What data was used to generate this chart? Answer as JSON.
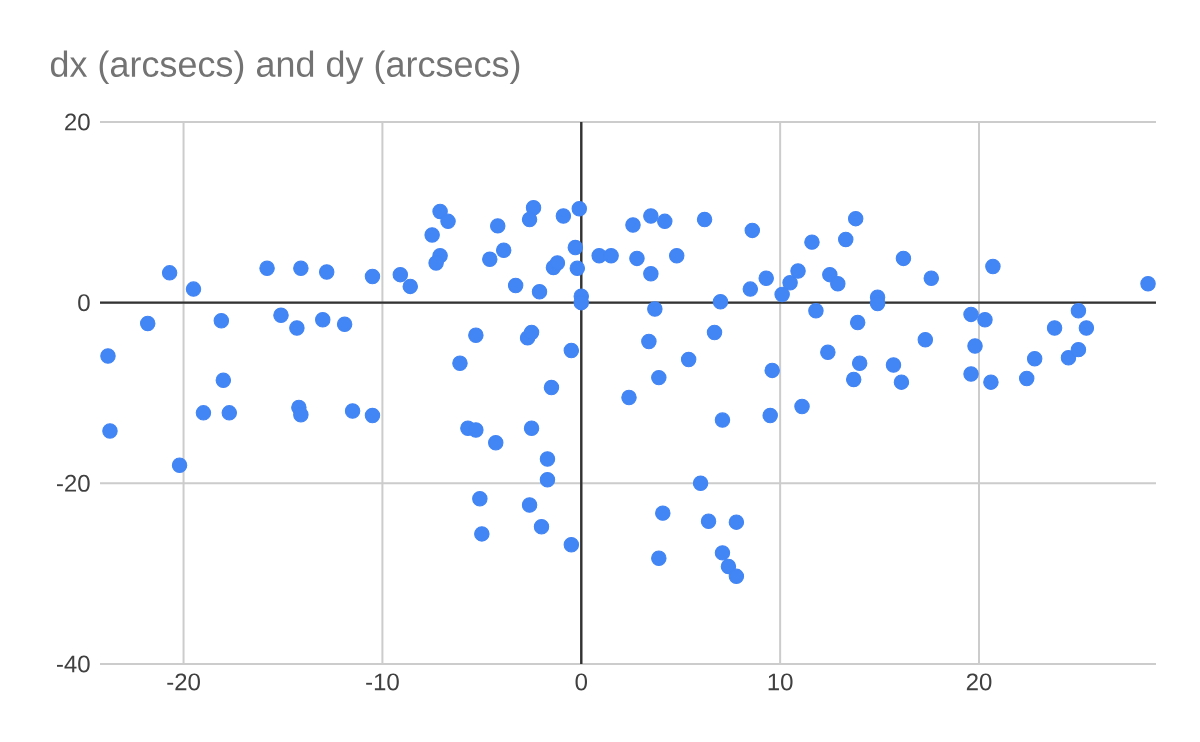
{
  "chart_data": {
    "type": "scatter",
    "title": "dx (arcsecs) and dy (arcsecs)",
    "x": [
      -7.1,
      -6.7,
      -7.5,
      -4.2,
      -2.4,
      -2.6,
      -0.9,
      -0.1,
      -7.1,
      -7.3,
      -4.6,
      -3.9,
      -0.3,
      -1.4,
      -1.2,
      -0.2,
      -3.3,
      -2.1,
      0,
      0,
      0.9,
      1.5,
      2.6,
      3.5,
      4.2,
      6.2,
      8.6,
      2.8,
      3.5,
      4.8,
      8.5,
      9.3,
      10.1,
      3.7,
      7.0,
      -5.3,
      -2.7,
      -2.5,
      -6.1,
      -0.5,
      -1.5,
      3.4,
      6.7,
      5.4,
      3.9,
      9.6,
      -20.7,
      -19.5,
      -21.8,
      -23.8,
      -18.1,
      -18.0,
      -15.8,
      -14.1,
      -12.8,
      -15.1,
      -14.3,
      -13.0,
      -11.9,
      -10.5,
      -9.1,
      -8.6,
      10.5,
      10.9,
      11.6,
      13.3,
      13.8,
      12.5,
      12.9,
      11.8,
      13.9,
      14.9,
      14.9,
      16.2,
      17.6,
      20.7,
      28.5,
      19.6,
      20.3,
      17.3,
      19.8,
      23.8,
      25.0,
      25.4,
      12.4,
      14.0,
      15.7,
      13.7,
      16.1,
      19.6,
      20.6,
      22.4,
      22.8,
      24.5,
      25.0,
      9.5,
      11.1,
      -23.7,
      -20.2,
      -19.0,
      -17.7,
      -14.2,
      -14.1,
      -11.5,
      -10.5,
      -5.7,
      -5.3,
      -4.3,
      -2.5,
      -1.7,
      -1.7,
      -5.1,
      -2.6,
      -5.0,
      -2.0,
      -0.5,
      2.4,
      7.1,
      6.0,
      4.1,
      6.4,
      7.8,
      3.9,
      7.1,
      7.4,
      7.8
    ],
    "values": [
      10.1,
      9.0,
      7.5,
      8.5,
      10.5,
      9.2,
      9.6,
      10.4,
      5.2,
      4.4,
      4.8,
      5.8,
      6.1,
      3.9,
      4.4,
      3.8,
      1.9,
      1.2,
      0.7,
      0,
      5.2,
      5.2,
      8.6,
      9.6,
      9.0,
      9.2,
      8.0,
      4.9,
      3.2,
      5.2,
      1.5,
      2.7,
      0.9,
      -0.7,
      0.1,
      -3.6,
      -3.9,
      -3.3,
      -6.7,
      -5.3,
      -9.4,
      -4.3,
      -3.3,
      -6.3,
      -8.3,
      -7.5,
      3.3,
      1.5,
      -2.3,
      -5.9,
      -2.0,
      -8.6,
      3.8,
      3.8,
      3.4,
      -1.4,
      -2.8,
      -1.9,
      -2.4,
      2.9,
      3.1,
      1.8,
      2.2,
      3.5,
      6.7,
      7.0,
      9.3,
      3.1,
      2.1,
      -0.9,
      -2.2,
      0.6,
      -0.1,
      4.9,
      2.7,
      4.0,
      2.1,
      -1.3,
      -1.9,
      -4.1,
      -4.8,
      -2.8,
      -0.9,
      -2.8,
      -5.5,
      -6.7,
      -6.9,
      -8.5,
      -8.8,
      -7.9,
      -8.8,
      -8.4,
      -6.2,
      -6.1,
      -5.2,
      -12.5,
      -11.5,
      -14.2,
      -18.0,
      -12.2,
      -12.2,
      -11.6,
      -12.4,
      -12.0,
      -12.5,
      -13.9,
      -14.1,
      -15.5,
      -13.9,
      -17.3,
      -19.6,
      -21.7,
      -22.4,
      -25.6,
      -24.8,
      -26.8,
      -10.5,
      -13.0,
      -20.0,
      -23.3,
      -24.2,
      -24.3,
      -28.3,
      -27.7,
      -29.2,
      -30.3
    ],
    "color": "#4285f4",
    "grid": true,
    "xlim": [
      -24.2,
      28.9
    ],
    "ylim": [
      -40,
      20
    ],
    "xticks": [
      -20,
      -10,
      0,
      10,
      20
    ],
    "yticks": [
      -40,
      -20,
      0,
      20
    ]
  }
}
